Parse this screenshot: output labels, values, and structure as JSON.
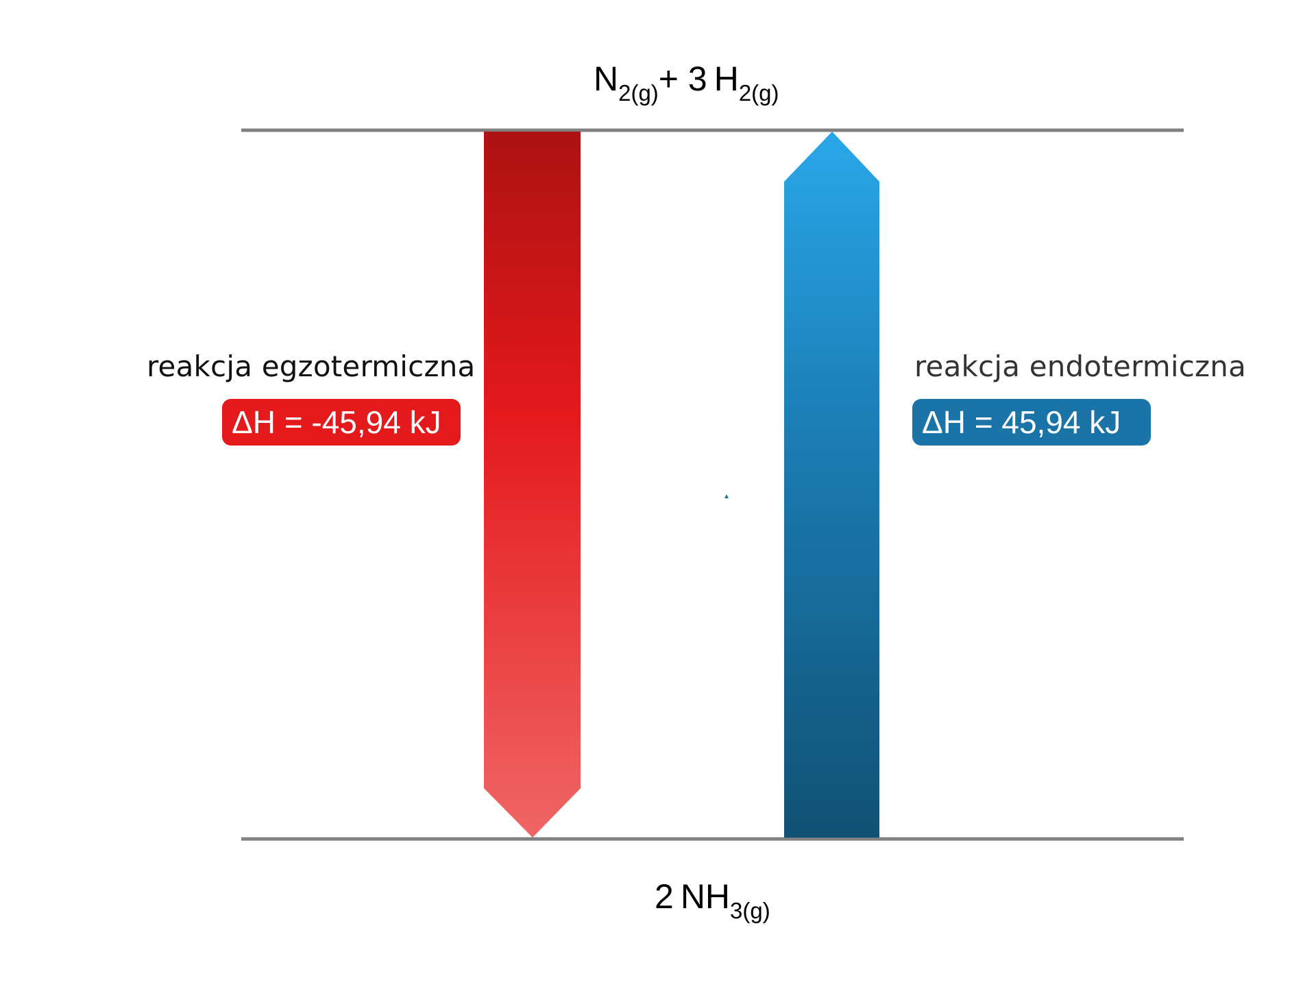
{
  "reactants": {
    "parts": [
      {
        "text": "N",
        "sub": "2(g)"
      },
      {
        "text": "+ 3 H",
        "sub": "2(g)"
      }
    ]
  },
  "products": {
    "parts": [
      {
        "text": "2 NH",
        "sub": "3(g)"
      }
    ]
  },
  "exothermic": {
    "label": "reakcja egzotermiczna",
    "delta_h": "ΔH = -45,94 kJ",
    "color": "#e4191c",
    "gradient": [
      "#ad1212",
      "#e4191c",
      "#f06666"
    ]
  },
  "endothermic": {
    "label": "reakcja endotermiczna",
    "delta_h": "ΔH = 45,94 kJ",
    "color": "#1b74a8",
    "gradient": [
      "#2aa7e8",
      "#1c7fb7",
      "#115174"
    ]
  },
  "level_line_color": "#808080"
}
